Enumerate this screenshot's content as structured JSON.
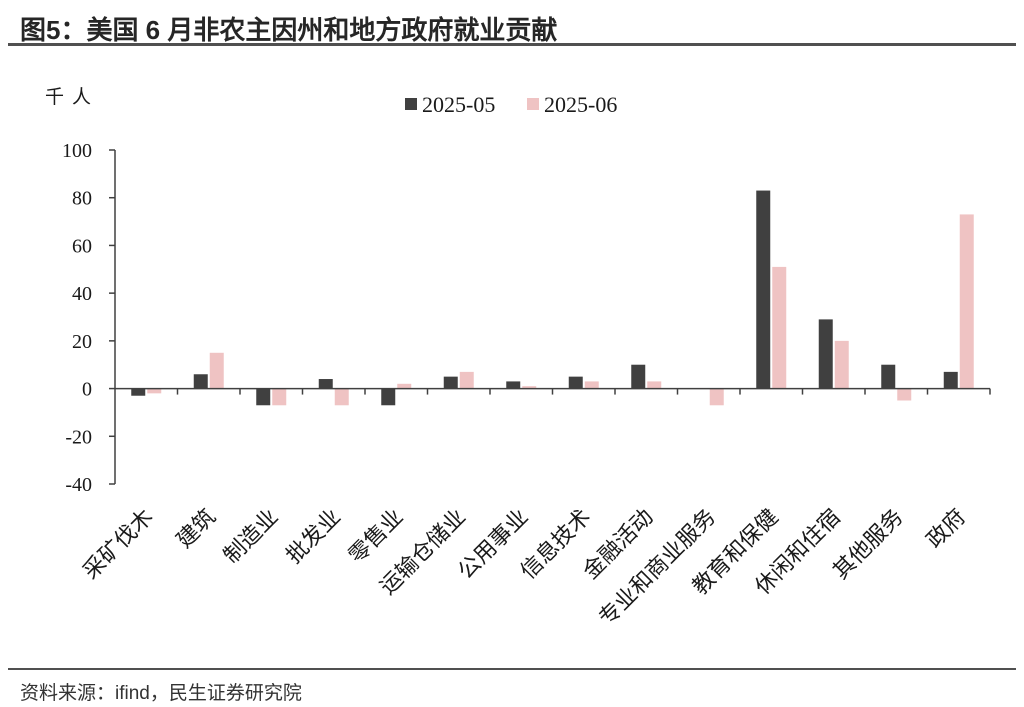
{
  "title": "图5：美国 6 月非农主因州和地方政府就业贡献",
  "source": "资料来源：ifind，民生证券研究院",
  "chart_data": {
    "type": "bar",
    "ylabel": "千人",
    "ylim": [
      -40,
      100
    ],
    "yticks": [
      100,
      80,
      60,
      40,
      20,
      0,
      -20,
      -40
    ],
    "grid": false,
    "legend": "top-center",
    "categories": [
      "采矿伐木",
      "建筑",
      "制造业",
      "批发业",
      "零售业",
      "运输仓储业",
      "公用事业",
      "信息技术",
      "金融活动",
      "专业和商业服务",
      "教育和保健",
      "休闲和住宿",
      "其他服务",
      "政府"
    ],
    "series": [
      {
        "name": "2025-05",
        "color": "#404040",
        "values": [
          -3,
          6,
          -7,
          4,
          -7,
          5,
          3,
          5,
          10,
          0,
          83,
          29,
          10,
          7
        ]
      },
      {
        "name": "2025-06",
        "color": "#efc3c3",
        "values": [
          -2,
          15,
          -7,
          -7,
          2,
          7,
          1,
          3,
          3,
          -7,
          51,
          20,
          -5,
          73
        ]
      }
    ]
  }
}
